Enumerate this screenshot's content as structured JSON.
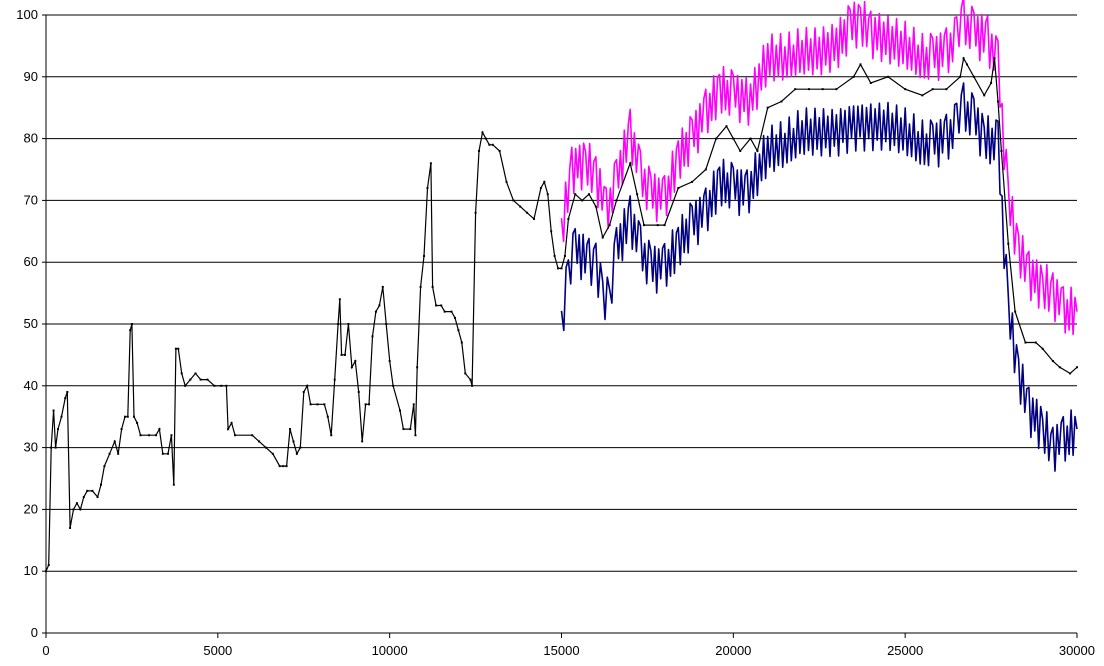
{
  "chart_data": {
    "type": "line",
    "title": "",
    "xlabel": "",
    "ylabel": "",
    "xlim": [
      0,
      30000
    ],
    "ylim": [
      0,
      100
    ],
    "x_ticks": [
      0,
      5000,
      10000,
      15000,
      20000,
      25000,
      30000
    ],
    "y_ticks": [
      0,
      10,
      20,
      30,
      40,
      50,
      60,
      70,
      80,
      90,
      100
    ],
    "grid": "horizontal",
    "legend": "none",
    "series": [
      {
        "color": "#000000",
        "style": "line-with-small-markers",
        "points": [
          [
            0,
            10
          ],
          [
            80,
            11
          ],
          [
            150,
            30
          ],
          [
            220,
            36
          ],
          [
            280,
            30
          ],
          [
            350,
            33
          ],
          [
            450,
            35
          ],
          [
            560,
            38
          ],
          [
            620,
            39
          ],
          [
            700,
            17
          ],
          [
            800,
            20
          ],
          [
            900,
            21
          ],
          [
            1000,
            20
          ],
          [
            1100,
            22
          ],
          [
            1200,
            23
          ],
          [
            1350,
            23
          ],
          [
            1500,
            22
          ],
          [
            1600,
            24
          ],
          [
            1700,
            27
          ],
          [
            1850,
            29
          ],
          [
            2000,
            31
          ],
          [
            2100,
            29
          ],
          [
            2200,
            33
          ],
          [
            2300,
            35
          ],
          [
            2380,
            35
          ],
          [
            2450,
            49
          ],
          [
            2500,
            50
          ],
          [
            2560,
            35
          ],
          [
            2650,
            34
          ],
          [
            2750,
            32
          ],
          [
            3000,
            32
          ],
          [
            3200,
            32
          ],
          [
            3300,
            33
          ],
          [
            3400,
            29
          ],
          [
            3550,
            29
          ],
          [
            3650,
            32
          ],
          [
            3720,
            24
          ],
          [
            3780,
            46
          ],
          [
            3850,
            46
          ],
          [
            3950,
            42
          ],
          [
            4050,
            40
          ],
          [
            4200,
            41
          ],
          [
            4350,
            42
          ],
          [
            4500,
            41
          ],
          [
            4700,
            41
          ],
          [
            4900,
            40
          ],
          [
            5100,
            40
          ],
          [
            5250,
            40
          ],
          [
            5300,
            33
          ],
          [
            5400,
            34
          ],
          [
            5500,
            32
          ],
          [
            6000,
            32
          ],
          [
            6200,
            31
          ],
          [
            6400,
            30
          ],
          [
            6600,
            29
          ],
          [
            6800,
            27
          ],
          [
            6900,
            27
          ],
          [
            7000,
            27
          ],
          [
            7100,
            33
          ],
          [
            7200,
            31
          ],
          [
            7300,
            29
          ],
          [
            7400,
            30
          ],
          [
            7500,
            39
          ],
          [
            7600,
            40
          ],
          [
            7700,
            37
          ],
          [
            7900,
            37
          ],
          [
            8100,
            37
          ],
          [
            8200,
            35
          ],
          [
            8300,
            32
          ],
          [
            8400,
            41
          ],
          [
            8500,
            50
          ],
          [
            8550,
            54
          ],
          [
            8600,
            45
          ],
          [
            8700,
            45
          ],
          [
            8800,
            50
          ],
          [
            8900,
            43
          ],
          [
            9000,
            44
          ],
          [
            9100,
            39
          ],
          [
            9200,
            31
          ],
          [
            9300,
            37
          ],
          [
            9400,
            37
          ],
          [
            9500,
            48
          ],
          [
            9600,
            52
          ],
          [
            9700,
            53
          ],
          [
            9800,
            56
          ],
          [
            9900,
            50
          ],
          [
            10000,
            44
          ],
          [
            10100,
            40
          ],
          [
            10300,
            36
          ],
          [
            10400,
            33
          ],
          [
            10600,
            33
          ],
          [
            10700,
            37
          ],
          [
            10750,
            32
          ],
          [
            10800,
            43
          ],
          [
            10900,
            56
          ],
          [
            11000,
            61
          ],
          [
            11100,
            72
          ],
          [
            11200,
            76
          ],
          [
            11250,
            56
          ],
          [
            11350,
            53
          ],
          [
            11500,
            53
          ],
          [
            11600,
            52
          ],
          [
            11800,
            52
          ],
          [
            11900,
            51
          ],
          [
            12000,
            49
          ],
          [
            12100,
            47
          ],
          [
            12200,
            42
          ],
          [
            12350,
            41
          ],
          [
            12400,
            40
          ],
          [
            12500,
            68
          ],
          [
            12600,
            78
          ],
          [
            12700,
            81
          ],
          [
            12800,
            80
          ],
          [
            12900,
            79
          ],
          [
            13000,
            79
          ],
          [
            13200,
            78
          ],
          [
            13400,
            73
          ],
          [
            13600,
            70
          ],
          [
            13800,
            69
          ],
          [
            14000,
            68
          ],
          [
            14200,
            67
          ],
          [
            14400,
            72
          ],
          [
            14500,
            73
          ],
          [
            14600,
            71
          ],
          [
            14700,
            65
          ],
          [
            14800,
            61
          ],
          [
            14900,
            59
          ],
          [
            15000,
            59
          ],
          [
            15100,
            61
          ],
          [
            15200,
            67
          ],
          [
            15400,
            71
          ],
          [
            15600,
            70
          ],
          [
            15800,
            71
          ],
          [
            16000,
            69
          ],
          [
            16200,
            64
          ],
          [
            16400,
            66
          ],
          [
            16600,
            70
          ],
          [
            17000,
            76
          ],
          [
            17200,
            71
          ],
          [
            17400,
            66
          ],
          [
            17800,
            66
          ],
          [
            18000,
            66
          ],
          [
            18400,
            72
          ],
          [
            18800,
            73
          ],
          [
            19200,
            75
          ],
          [
            19500,
            80
          ],
          [
            19800,
            82
          ],
          [
            20000,
            80
          ],
          [
            20200,
            78
          ],
          [
            20500,
            80
          ],
          [
            20700,
            78
          ],
          [
            21000,
            85
          ],
          [
            21400,
            86
          ],
          [
            21800,
            88
          ],
          [
            22200,
            88
          ],
          [
            22600,
            88
          ],
          [
            23000,
            88
          ],
          [
            23500,
            90
          ],
          [
            23700,
            92
          ],
          [
            24000,
            89
          ],
          [
            24500,
            90
          ],
          [
            25000,
            88
          ],
          [
            25500,
            87
          ],
          [
            25800,
            88
          ],
          [
            26200,
            88
          ],
          [
            26600,
            90
          ],
          [
            26700,
            93
          ],
          [
            26800,
            92
          ],
          [
            27000,
            90
          ],
          [
            27300,
            87
          ],
          [
            27500,
            89
          ],
          [
            27600,
            93
          ],
          [
            27700,
            86
          ],
          [
            27800,
            78
          ],
          [
            28000,
            63
          ],
          [
            28200,
            52
          ],
          [
            28500,
            47
          ],
          [
            28800,
            47
          ],
          [
            29000,
            46
          ],
          [
            29300,
            44
          ],
          [
            29500,
            43
          ],
          [
            29800,
            42
          ],
          [
            30000,
            43
          ]
        ]
      },
      {
        "color": "#FF00FF",
        "style": "band-upper",
        "points": [
          [
            15000,
            65
          ],
          [
            15300,
            75
          ],
          [
            15700,
            76
          ],
          [
            16000,
            74
          ],
          [
            16300,
            68
          ],
          [
            16600,
            73
          ],
          [
            17000,
            81
          ],
          [
            17300,
            74
          ],
          [
            17600,
            71
          ],
          [
            18000,
            70
          ],
          [
            18400,
            77
          ],
          [
            18800,
            80
          ],
          [
            19200,
            84
          ],
          [
            19600,
            88
          ],
          [
            20000,
            87
          ],
          [
            20500,
            86
          ],
          [
            21000,
            93
          ],
          [
            21500,
            93
          ],
          [
            22000,
            94
          ],
          [
            22500,
            94
          ],
          [
            23000,
            95
          ],
          [
            23400,
            98
          ],
          [
            23700,
            99
          ],
          [
            24000,
            97
          ],
          [
            24500,
            96
          ],
          [
            25000,
            95
          ],
          [
            25500,
            93
          ],
          [
            25800,
            93
          ],
          [
            26200,
            94
          ],
          [
            26500,
            96
          ],
          [
            26700,
            99
          ],
          [
            27000,
            97
          ],
          [
            27400,
            96
          ],
          [
            27700,
            92
          ],
          [
            28000,
            70
          ],
          [
            28300,
            62
          ],
          [
            28600,
            58
          ],
          [
            29000,
            56
          ],
          [
            29300,
            55
          ],
          [
            29600,
            52
          ],
          [
            30000,
            52
          ]
        ]
      },
      {
        "color": "#000080",
        "style": "band-lower",
        "points": [
          [
            15000,
            50
          ],
          [
            15200,
            58
          ],
          [
            15400,
            62
          ],
          [
            15800,
            60
          ],
          [
            16000,
            60
          ],
          [
            16200,
            55
          ],
          [
            16400,
            53
          ],
          [
            16600,
            62
          ],
          [
            17000,
            67
          ],
          [
            17300,
            62
          ],
          [
            17600,
            59
          ],
          [
            18000,
            59
          ],
          [
            18400,
            63
          ],
          [
            18800,
            66
          ],
          [
            19200,
            68
          ],
          [
            19600,
            73
          ],
          [
            20000,
            72
          ],
          [
            20400,
            71
          ],
          [
            21000,
            78
          ],
          [
            21500,
            79
          ],
          [
            22000,
            81
          ],
          [
            22500,
            81
          ],
          [
            23000,
            81
          ],
          [
            23500,
            82
          ],
          [
            24000,
            82
          ],
          [
            24500,
            82
          ],
          [
            25000,
            81
          ],
          [
            25500,
            79
          ],
          [
            25800,
            79
          ],
          [
            26200,
            80
          ],
          [
            26500,
            82
          ],
          [
            26700,
            85
          ],
          [
            27000,
            83
          ],
          [
            27300,
            80
          ],
          [
            27700,
            79
          ],
          [
            28000,
            52
          ],
          [
            28300,
            42
          ],
          [
            28600,
            36
          ],
          [
            29000,
            33
          ],
          [
            29300,
            30
          ],
          [
            29600,
            31
          ],
          [
            30000,
            33
          ]
        ]
      }
    ]
  }
}
